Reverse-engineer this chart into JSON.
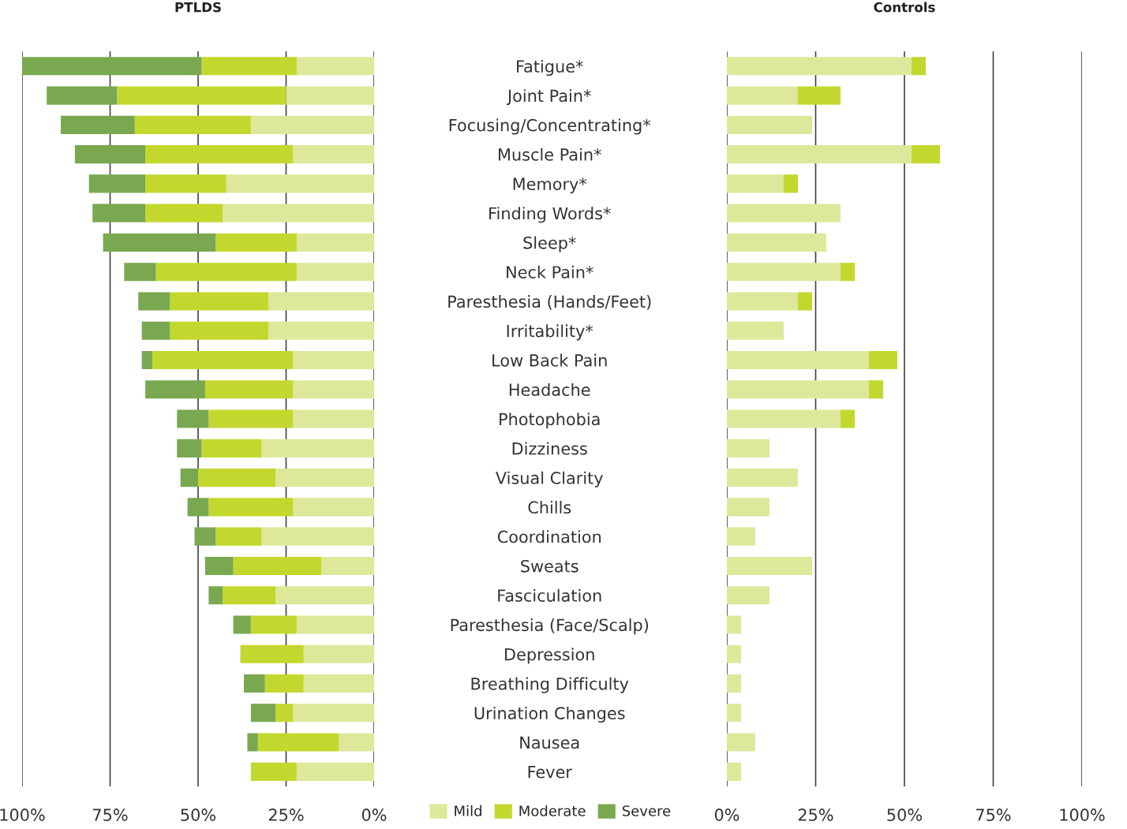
{
  "chart_data": [
    {
      "type": "bar",
      "orientation": "horizontal",
      "stacked": true,
      "title": "PTLDS",
      "categories": [
        "Fatigue*",
        "Joint Pain*",
        "Focusing/Concentrating*",
        "Muscle Pain*",
        "Memory*",
        "Finding Words*",
        "Sleep*",
        "Neck Pain*",
        "Paresthesia (Hands/Feet)",
        "Irritability*",
        "Low Back Pain",
        "Headache",
        "Photophobia",
        "Dizziness",
        "Visual Clarity",
        "Chills",
        "Coordination",
        "Sweats",
        "Fasciculation",
        "Paresthesia (Face/Scalp)",
        "Depression",
        "Breathing Difficulty",
        "Urination Changes",
        "Nausea",
        "Fever"
      ],
      "series": [
        {
          "name": "Mild",
          "color": "#dde89b",
          "values": [
            22,
            25,
            35,
            23,
            42,
            43,
            22,
            22,
            30,
            30,
            23,
            23,
            23,
            32,
            28,
            23,
            32,
            15,
            28,
            22,
            20,
            20,
            23,
            10,
            22
          ]
        },
        {
          "name": "Moderate",
          "color": "#c3d82e",
          "values": [
            27,
            48,
            33,
            42,
            23,
            22,
            23,
            40,
            28,
            28,
            40,
            25,
            24,
            17,
            22,
            24,
            13,
            25,
            15,
            13,
            18,
            11,
            5,
            23,
            13
          ]
        },
        {
          "name": "Severe",
          "color": "#79a850",
          "values": [
            51,
            20,
            21,
            20,
            16,
            15,
            32,
            9,
            9,
            8,
            3,
            17,
            9,
            7,
            5,
            6,
            6,
            8,
            4,
            5,
            0,
            6,
            7,
            3,
            0
          ]
        }
      ],
      "xlim": [
        100,
        0
      ],
      "xticks": [
        {
          "value": 100,
          "label": "100%"
        },
        {
          "value": 75,
          "label": "75%"
        },
        {
          "value": 50,
          "label": "50%"
        },
        {
          "value": 25,
          "label": "25%"
        },
        {
          "value": 0,
          "label": "0%"
        }
      ],
      "grid": "x",
      "legend": "bottom"
    },
    {
      "type": "bar",
      "orientation": "horizontal",
      "stacked": true,
      "title": "Controls",
      "categories": [
        null,
        null,
        null,
        null,
        null,
        null,
        null,
        null,
        null,
        null,
        null,
        null,
        null,
        null,
        null,
        null,
        null,
        null,
        null,
        null,
        null,
        null,
        null,
        null,
        null
      ],
      "series": [
        {
          "name": "Mild",
          "color": "#dde89b",
          "values": [
            52,
            20,
            24,
            52,
            16,
            32,
            28,
            32,
            20,
            16,
            40,
            40,
            32,
            12,
            20,
            12,
            8,
            24,
            12,
            4,
            4,
            4,
            4,
            8,
            4
          ]
        },
        {
          "name": "Moderate",
          "color": "#c3d82e",
          "values": [
            4,
            12,
            0,
            8,
            4,
            0,
            0,
            4,
            4,
            0,
            8,
            4,
            4,
            0,
            0,
            0,
            0,
            0,
            0,
            0,
            0,
            0,
            0,
            0,
            0
          ]
        },
        {
          "name": "Severe",
          "color": "#79a850",
          "values": [
            0,
            0,
            0,
            0,
            0,
            0,
            0,
            0,
            0,
            0,
            0,
            0,
            0,
            0,
            0,
            0,
            0,
            0,
            0,
            0,
            0,
            0,
            0,
            0,
            0
          ]
        }
      ],
      "xlim": [
        0,
        100
      ],
      "xticks": [
        {
          "value": 0,
          "label": "0%"
        },
        {
          "value": 25,
          "label": "25%"
        },
        {
          "value": 50,
          "label": "50%"
        },
        {
          "value": 75,
          "label": "75%"
        },
        {
          "value": 100,
          "label": "100%"
        }
      ],
      "grid": "x",
      "legend": "bottom",
      "tick_labels": "x"
    }
  ]
}
